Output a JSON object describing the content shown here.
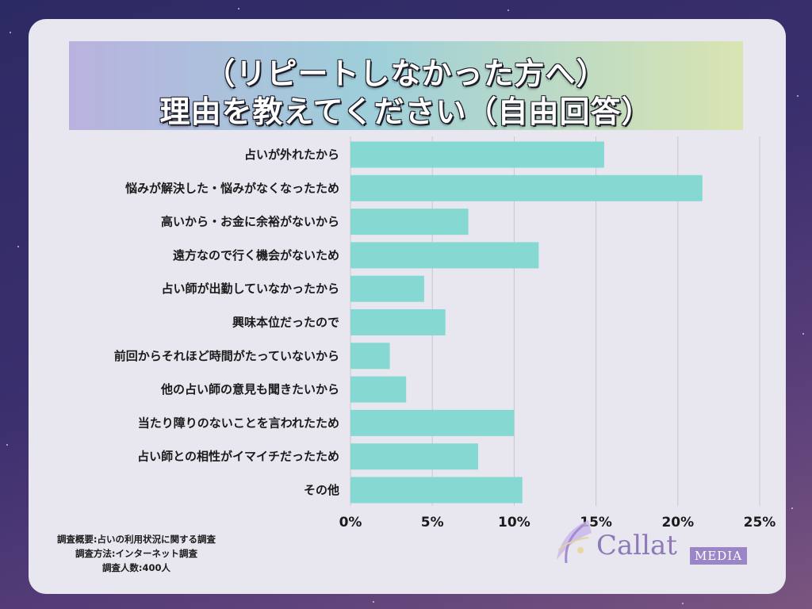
{
  "title": {
    "line1": "（リピートしなかった方へ）",
    "line2": "理由を教えてください（自由回答）"
  },
  "colors": {
    "bar": "#86d9d3",
    "grid": "#c9c7d3"
  },
  "chart_data": {
    "type": "bar",
    "orientation": "horizontal",
    "categories": [
      "占いが外れたから",
      "悩みが解決した・悩みがなくなったため",
      "高いから・お金に余裕がないから",
      "遠方なので行く機会がないため",
      "占い師が出勤していなかったから",
      "興味本位だったので",
      "前回からそれほど時間がたっていないから",
      "他の占い師の意見も聞きたいから",
      "当たり障りのないことを言われたため",
      "占い師との相性がイマイチだったため",
      "その他"
    ],
    "values": [
      15.5,
      21.5,
      7.2,
      11.5,
      4.5,
      5.8,
      2.4,
      3.4,
      10.0,
      7.8,
      10.5
    ],
    "xlim": [
      0,
      25
    ],
    "ticks": [
      "0%",
      "5%",
      "10%",
      "15%",
      "20%",
      "25%"
    ],
    "grid": true
  },
  "notes": {
    "line1": "調査概要:占いの利用状況に関する調査",
    "line2": "調査方法:インターネット調査",
    "line3": "調査人数:400人"
  },
  "logo": {
    "name": "Callat",
    "sub": "MEDIA"
  }
}
